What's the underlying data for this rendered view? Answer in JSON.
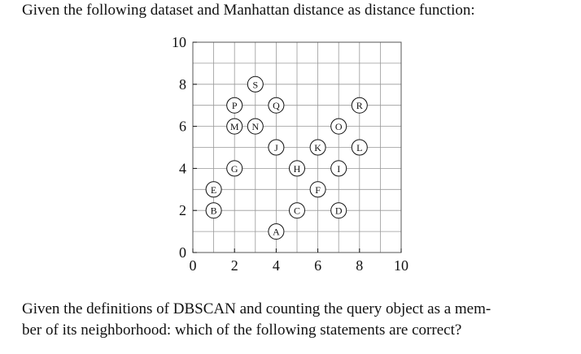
{
  "intro": "Given the following dataset and Manhattan distance as distance function:",
  "chart_data": {
    "type": "scatter",
    "labels": [
      "S",
      "P",
      "Q",
      "R",
      "M",
      "N",
      "O",
      "J",
      "K",
      "L",
      "G",
      "H",
      "I",
      "E",
      "F",
      "B",
      "C",
      "D",
      "A"
    ],
    "x": [
      3,
      2,
      4,
      8,
      2,
      3,
      7,
      4,
      6,
      8,
      2,
      5,
      7,
      1,
      6,
      1,
      5,
      7,
      4
    ],
    "values": [
      8,
      7,
      7,
      7,
      6,
      6,
      6,
      5,
      5,
      5,
      4,
      4,
      4,
      3,
      3,
      2,
      2,
      2,
      1
    ],
    "xlim": [
      0,
      10
    ],
    "ylim": [
      0,
      10
    ],
    "xticks": [
      0,
      2,
      4,
      6,
      8,
      10
    ],
    "yticks": [
      0,
      2,
      4,
      6,
      8,
      10
    ],
    "xminor": [
      1,
      3,
      5,
      7,
      9
    ],
    "yminor": [
      1,
      3,
      5,
      7,
      9
    ],
    "grid": true
  },
  "question": [
    "Given the definitions of DBSCAN and counting the query object as a mem-",
    "ber of its neighborhood: which of the following statements are correct?"
  ]
}
